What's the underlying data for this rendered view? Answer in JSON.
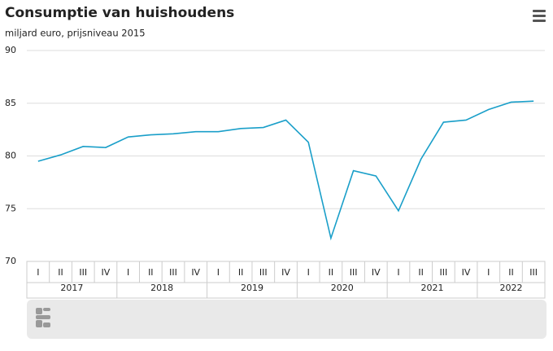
{
  "chart_data": {
    "type": "line",
    "title": "Consumptie van huishoudens",
    "subtitle": "miljard euro, prijsniveau 2015",
    "categories": [
      "I",
      "II",
      "III",
      "IV",
      "I",
      "II",
      "III",
      "IV",
      "I",
      "II",
      "III",
      "IV",
      "I",
      "II",
      "III",
      "IV",
      "I",
      "II",
      "III",
      "IV",
      "I",
      "II",
      "III"
    ],
    "years": [
      "2017",
      "2018",
      "2019",
      "2020",
      "2021",
      "2022"
    ],
    "values": [
      79.5,
      80.1,
      80.9,
      80.8,
      81.8,
      82.0,
      82.1,
      82.3,
      82.3,
      82.6,
      82.7,
      83.4,
      81.3,
      72.2,
      78.6,
      78.1,
      74.8,
      79.7,
      83.2,
      83.4,
      84.4,
      85.1,
      85.2
    ],
    "color": "#1a9fc9",
    "ylim": [
      70,
      90
    ],
    "yticks": [
      70,
      75,
      80,
      85,
      90
    ],
    "grid": true
  }
}
